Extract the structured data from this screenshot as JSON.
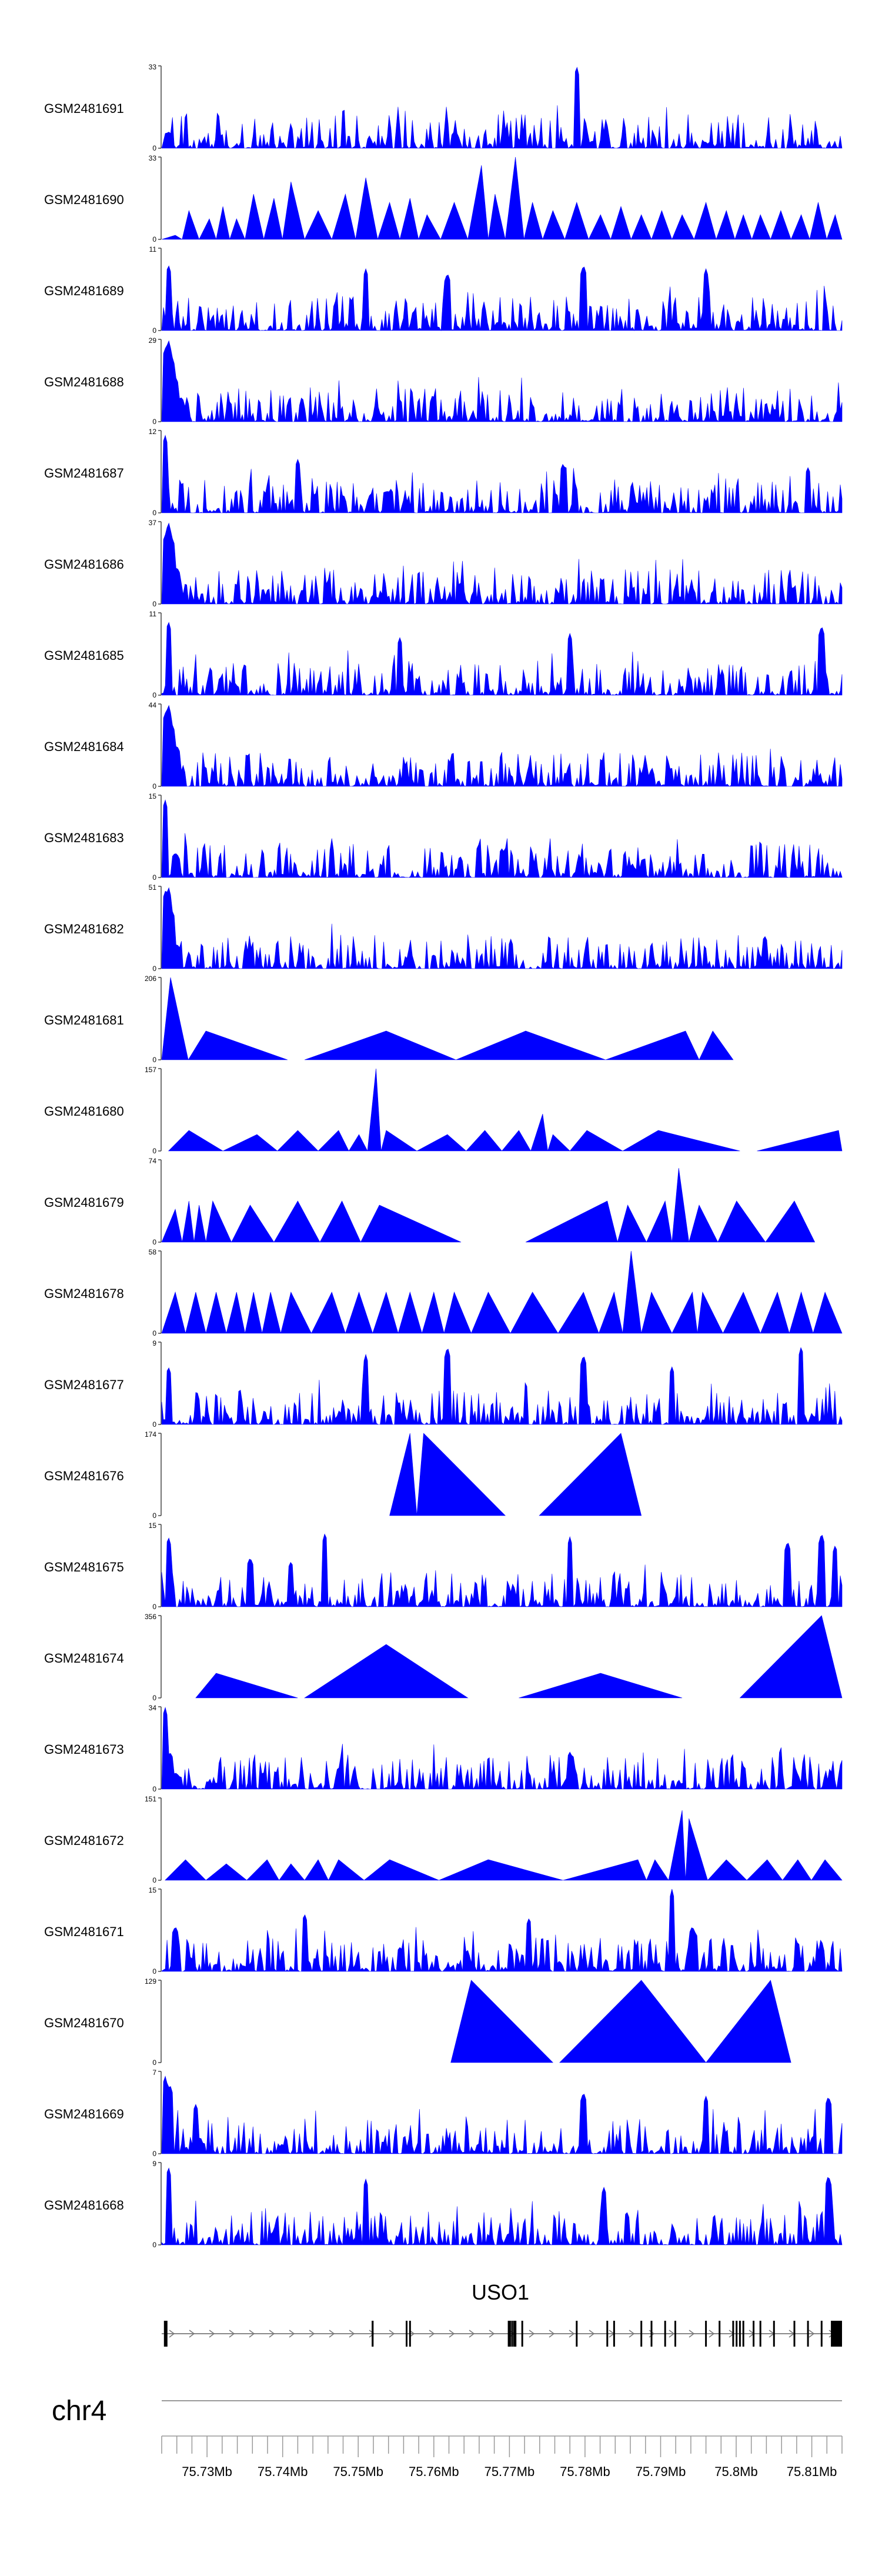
{
  "chart_data": {
    "type": "area",
    "color": "#0000ff",
    "tracks": [
      {
        "name": "GSM2481691",
        "ymax": 33,
        "style": "dense",
        "spikes": [
          [
            0.01,
            0.2
          ],
          [
            0.61,
            1.0
          ]
        ]
      },
      {
        "name": "GSM2481690",
        "ymax": 33,
        "style": "tri",
        "peaks": [
          [
            0.02,
            0.05
          ],
          [
            0.04,
            0.35
          ],
          [
            0.07,
            0.25
          ],
          [
            0.09,
            0.4
          ],
          [
            0.11,
            0.25
          ],
          [
            0.135,
            0.55
          ],
          [
            0.165,
            0.5
          ],
          [
            0.19,
            0.7
          ],
          [
            0.23,
            0.35
          ],
          [
            0.27,
            0.55
          ],
          [
            0.3,
            0.75
          ],
          [
            0.335,
            0.45
          ],
          [
            0.365,
            0.5
          ],
          [
            0.39,
            0.3
          ],
          [
            0.43,
            0.45
          ],
          [
            0.47,
            0.9
          ],
          [
            0.49,
            0.55
          ],
          [
            0.52,
            1.0
          ],
          [
            0.545,
            0.45
          ],
          [
            0.575,
            0.35
          ],
          [
            0.61,
            0.45
          ],
          [
            0.645,
            0.3
          ],
          [
            0.675,
            0.4
          ],
          [
            0.705,
            0.3
          ],
          [
            0.735,
            0.35
          ],
          [
            0.765,
            0.3
          ],
          [
            0.8,
            0.45
          ],
          [
            0.83,
            0.35
          ],
          [
            0.855,
            0.3
          ],
          [
            0.88,
            0.3
          ],
          [
            0.91,
            0.35
          ],
          [
            0.94,
            0.3
          ],
          [
            0.965,
            0.45
          ],
          [
            0.99,
            0.3
          ]
        ]
      },
      {
        "name": "GSM2481689",
        "ymax": 11,
        "style": "dense",
        "spikes": [
          [
            0.01,
            0.8
          ],
          [
            0.3,
            0.75
          ],
          [
            0.42,
            0.7
          ],
          [
            0.62,
            0.8
          ],
          [
            0.8,
            0.75
          ]
        ]
      },
      {
        "name": "GSM2481688",
        "ymax": 29,
        "style": "dense",
        "spikes": [
          [
            0.005,
            0.9
          ],
          [
            0.01,
            1.0
          ],
          [
            0.015,
            0.8
          ],
          [
            0.02,
            0.55
          ],
          [
            0.028,
            0.3
          ]
        ]
      },
      {
        "name": "GSM2481687",
        "ymax": 12,
        "style": "dense",
        "spikes": [
          [
            0.005,
            0.95
          ],
          [
            0.2,
            0.65
          ],
          [
            0.59,
            0.6
          ],
          [
            0.95,
            0.55
          ]
        ]
      },
      {
        "name": "GSM2481686",
        "ymax": 37,
        "style": "dense",
        "spikes": [
          [
            0.005,
            0.85
          ],
          [
            0.01,
            1.0
          ],
          [
            0.016,
            0.8
          ],
          [
            0.022,
            0.45
          ]
        ]
      },
      {
        "name": "GSM2481685",
        "ymax": 11,
        "style": "dense",
        "spikes": [
          [
            0.01,
            0.9
          ],
          [
            0.35,
            0.7
          ],
          [
            0.6,
            0.75
          ],
          [
            0.97,
            0.85
          ]
        ]
      },
      {
        "name": "GSM2481684",
        "ymax": 44,
        "style": "dense",
        "spikes": [
          [
            0.005,
            0.9
          ],
          [
            0.01,
            1.0
          ],
          [
            0.016,
            0.75
          ],
          [
            0.022,
            0.5
          ],
          [
            0.03,
            0.2
          ]
        ]
      },
      {
        "name": "GSM2481683",
        "ymax": 15,
        "style": "dense",
        "spikes": [
          [
            0.005,
            0.95
          ],
          [
            0.02,
            0.3
          ],
          [
            0.5,
            0.35
          ]
        ]
      },
      {
        "name": "GSM2481682",
        "ymax": 51,
        "style": "dense",
        "spikes": [
          [
            0.005,
            0.95
          ],
          [
            0.01,
            1.0
          ],
          [
            0.016,
            0.7
          ],
          [
            0.022,
            0.3
          ]
        ]
      },
      {
        "name": "GSM2481681",
        "ymax": 206,
        "style": "tri",
        "peaks": [
          [
            0.013,
            1.0
          ],
          [
            0.065,
            0.35
          ],
          [
            0.33,
            0.35
          ],
          [
            0.535,
            0.35
          ],
          [
            0.77,
            0.35
          ],
          [
            0.81,
            0.35
          ]
        ]
      },
      {
        "name": "GSM2481680",
        "ymax": 157,
        "style": "tri",
        "peaks": [
          [
            0.04,
            0.25
          ],
          [
            0.14,
            0.2
          ],
          [
            0.2,
            0.25
          ],
          [
            0.26,
            0.25
          ],
          [
            0.29,
            0.2
          ],
          [
            0.315,
            1.0
          ],
          [
            0.33,
            0.25
          ],
          [
            0.42,
            0.2
          ],
          [
            0.475,
            0.25
          ],
          [
            0.525,
            0.25
          ],
          [
            0.56,
            0.45
          ],
          [
            0.575,
            0.2
          ],
          [
            0.625,
            0.25
          ],
          [
            0.73,
            0.25
          ],
          [
            0.995,
            0.25
          ]
        ]
      },
      {
        "name": "GSM2481679",
        "ymax": 74,
        "style": "tri",
        "peaks": [
          [
            0.02,
            0.4
          ],
          [
            0.04,
            0.5
          ],
          [
            0.055,
            0.45
          ],
          [
            0.075,
            0.5
          ],
          [
            0.13,
            0.45
          ],
          [
            0.2,
            0.5
          ],
          [
            0.265,
            0.5
          ],
          [
            0.32,
            0.45
          ],
          [
            0.655,
            0.5
          ],
          [
            0.685,
            0.45
          ],
          [
            0.74,
            0.5
          ],
          [
            0.76,
            0.9
          ],
          [
            0.79,
            0.45
          ],
          [
            0.845,
            0.5
          ],
          [
            0.93,
            0.5
          ]
        ]
      },
      {
        "name": "GSM2481678",
        "ymax": 58,
        "style": "tri",
        "peaks": [
          [
            0.02,
            0.5
          ],
          [
            0.05,
            0.5
          ],
          [
            0.08,
            0.5
          ],
          [
            0.11,
            0.5
          ],
          [
            0.135,
            0.5
          ],
          [
            0.16,
            0.5
          ],
          [
            0.19,
            0.5
          ],
          [
            0.25,
            0.5
          ],
          [
            0.29,
            0.5
          ],
          [
            0.33,
            0.5
          ],
          [
            0.365,
            0.5
          ],
          [
            0.4,
            0.5
          ],
          [
            0.43,
            0.5
          ],
          [
            0.48,
            0.5
          ],
          [
            0.545,
            0.5
          ],
          [
            0.62,
            0.5
          ],
          [
            0.665,
            0.5
          ],
          [
            0.69,
            1.0
          ],
          [
            0.72,
            0.5
          ],
          [
            0.78,
            0.5
          ],
          [
            0.795,
            0.5
          ],
          [
            0.855,
            0.5
          ],
          [
            0.905,
            0.5
          ],
          [
            0.94,
            0.5
          ],
          [
            0.975,
            0.5
          ]
        ]
      },
      {
        "name": "GSM2481677",
        "ymax": 9,
        "style": "dense",
        "spikes": [
          [
            0.01,
            0.7
          ],
          [
            0.3,
            0.85
          ],
          [
            0.42,
            0.95
          ],
          [
            0.62,
            0.85
          ],
          [
            0.75,
            0.7
          ],
          [
            0.94,
            0.95
          ]
        ]
      },
      {
        "name": "GSM2481676",
        "ymax": 174,
        "style": "tri",
        "peaks": [
          [
            0.365,
            1.0
          ],
          [
            0.385,
            1.0
          ],
          [
            0.675,
            1.0
          ]
        ]
      },
      {
        "name": "GSM2481675",
        "ymax": 15,
        "style": "dense",
        "spikes": [
          [
            0.01,
            0.85
          ],
          [
            0.13,
            0.6
          ],
          [
            0.19,
            0.55
          ],
          [
            0.24,
            0.9
          ],
          [
            0.6,
            0.85
          ],
          [
            0.92,
            0.8
          ],
          [
            0.97,
            0.9
          ],
          [
            0.99,
            0.75
          ]
        ]
      },
      {
        "name": "GSM2481674",
        "ymax": 356,
        "style": "tri",
        "peaks": [
          [
            0.08,
            0.3
          ],
          [
            0.33,
            0.65
          ],
          [
            0.645,
            0.3
          ],
          [
            0.97,
            1.0
          ]
        ]
      },
      {
        "name": "GSM2481673",
        "ymax": 34,
        "style": "dense",
        "spikes": [
          [
            0.005,
            1.0
          ],
          [
            0.012,
            0.45
          ],
          [
            0.02,
            0.2
          ],
          [
            0.6,
            0.45
          ]
        ]
      },
      {
        "name": "GSM2481672",
        "ymax": 151,
        "style": "tri",
        "peaks": [
          [
            0.035,
            0.25
          ],
          [
            0.095,
            0.2
          ],
          [
            0.155,
            0.25
          ],
          [
            0.19,
            0.2
          ],
          [
            0.23,
            0.25
          ],
          [
            0.26,
            0.25
          ],
          [
            0.335,
            0.25
          ],
          [
            0.48,
            0.25
          ],
          [
            0.7,
            0.25
          ],
          [
            0.725,
            0.25
          ],
          [
            0.765,
            0.85
          ],
          [
            0.775,
            0.75
          ],
          [
            0.83,
            0.25
          ],
          [
            0.89,
            0.25
          ],
          [
            0.935,
            0.25
          ],
          [
            0.975,
            0.25
          ]
        ]
      },
      {
        "name": "GSM2481671",
        "ymax": 15,
        "style": "dense",
        "spikes": [
          [
            0.02,
            0.55
          ],
          [
            0.21,
            0.7
          ],
          [
            0.54,
            0.65
          ],
          [
            0.75,
            1.0
          ],
          [
            0.78,
            0.55
          ]
        ]
      },
      {
        "name": "GSM2481670",
        "ymax": 129,
        "style": "tri",
        "peaks": [
          [
            0.455,
            1.0
          ],
          [
            0.705,
            1.0
          ],
          [
            0.895,
            1.0
          ]
        ]
      },
      {
        "name": "GSM2481669",
        "ymax": 7,
        "style": "dense",
        "spikes": [
          [
            0.005,
            0.95
          ],
          [
            0.012,
            0.85
          ],
          [
            0.05,
            0.6
          ],
          [
            0.62,
            0.75
          ],
          [
            0.8,
            0.7
          ],
          [
            0.98,
            0.7
          ]
        ]
      },
      {
        "name": "GSM2481668",
        "ymax": 9,
        "style": "dense",
        "spikes": [
          [
            0.01,
            0.95
          ],
          [
            0.3,
            0.8
          ],
          [
            0.65,
            0.7
          ],
          [
            0.98,
            0.85
          ]
        ]
      }
    ],
    "gene": {
      "name": "USO1",
      "exons": [
        0.005,
        0.31,
        0.31,
        0.36,
        0.365,
        0.51,
        0.512,
        0.515,
        0.518,
        0.52,
        0.52,
        0.53,
        0.61,
        0.655,
        0.665,
        0.705,
        0.72,
        0.74,
        0.755,
        0.8,
        0.82,
        0.84,
        0.845,
        0.85,
        0.855,
        0.87,
        0.88,
        0.9,
        0.93,
        0.95,
        0.97,
        0.985,
        0.993,
        0.997
      ],
      "start": 0.005,
      "end": 1.0
    },
    "chromosome": "chr4",
    "x_range": [
      75724000,
      75814000
    ],
    "ticks": [
      75730000,
      75740000,
      75750000,
      75760000,
      75770000,
      75780000,
      75790000,
      75800000,
      75810000
    ],
    "tick_labels": [
      "75.73Mb",
      "75.74Mb",
      "75.75Mb",
      "75.76Mb",
      "75.77Mb",
      "75.78Mb",
      "75.79Mb",
      "75.8Mb",
      "75.81Mb"
    ],
    "y_min_label": "0"
  }
}
